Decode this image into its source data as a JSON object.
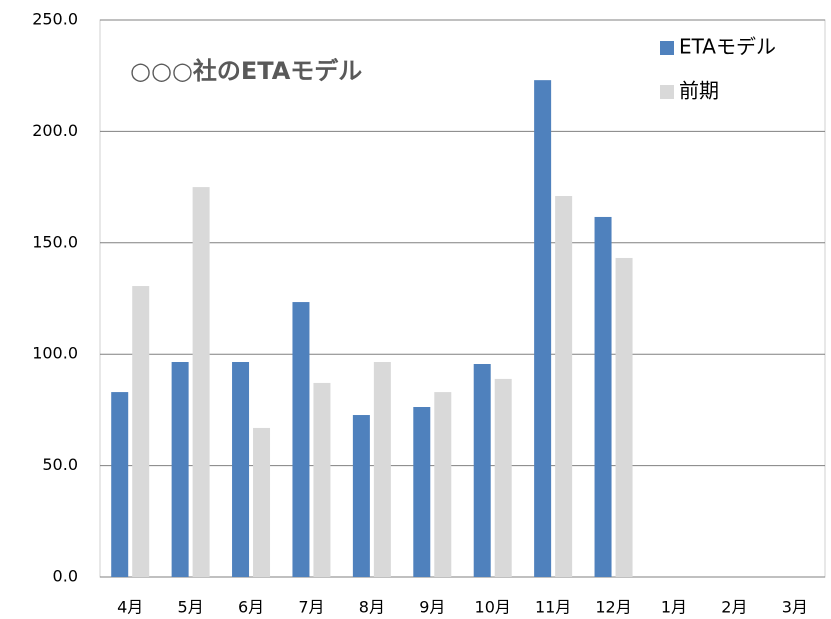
{
  "chart_data": {
    "type": "bar",
    "title": "○○○社のETAモデル",
    "categories": [
      "4月",
      "5月",
      "6月",
      "7月",
      "8月",
      "9月",
      "10月",
      "11月",
      "12月",
      "1月",
      "2月",
      "3月"
    ],
    "series": [
      {
        "name": "ETAモデル",
        "color": "#4f81bd",
        "values": [
          83.0,
          96.5,
          96.5,
          123.4,
          72.7,
          76.3,
          95.6,
          223.0,
          161.6,
          null,
          null,
          null
        ]
      },
      {
        "name": "前期",
        "color": "#d9d9d9",
        "values": [
          130.6,
          175.0,
          66.9,
          87.1,
          96.5,
          83.0,
          88.9,
          171.0,
          143.2,
          null,
          null,
          null
        ]
      }
    ],
    "ylim": [
      0,
      250
    ],
    "yticks": [
      {
        "value": 0,
        "label": "0.0"
      },
      {
        "value": 50,
        "label": "50.0"
      },
      {
        "value": 100,
        "label": "100.0"
      },
      {
        "value": 150,
        "label": "150.0"
      },
      {
        "value": 200,
        "label": "200.0"
      },
      {
        "value": 250,
        "label": "250.0"
      }
    ],
    "grid": true,
    "legend": "upper right"
  }
}
